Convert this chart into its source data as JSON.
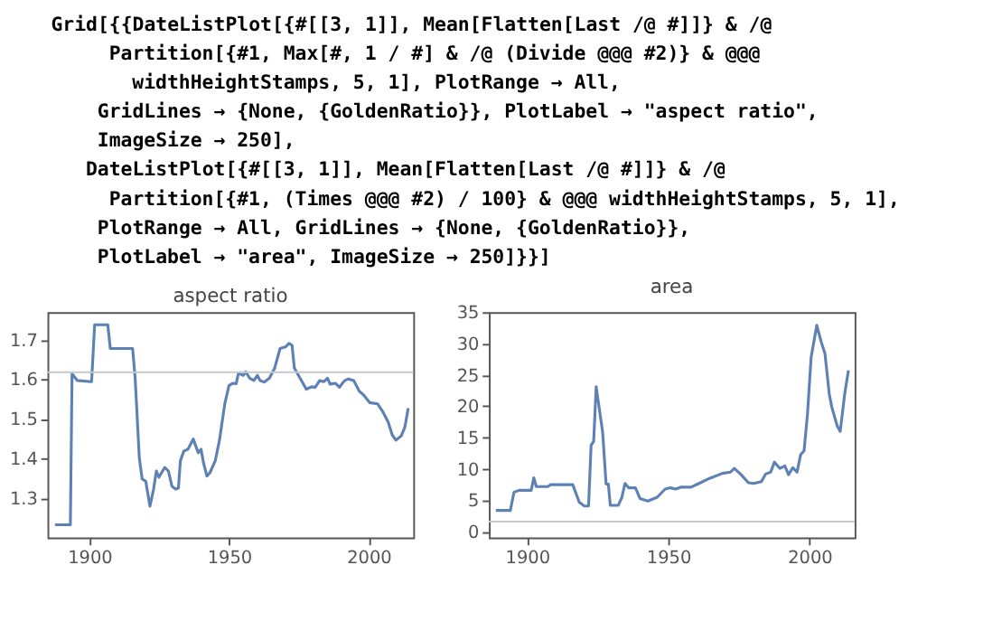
{
  "chart_data": [
    {
      "type": "line",
      "title": "aspect ratio",
      "annotations": [
        "Grid[{{DateListPlot[{#[[3, 1]], Mean[Flatten[Last /@ #]]} & /@",
        "Partition[{#1, Max[#, 1 / #] & /@ (Divide @@@ #2)} & @@@",
        "widthHeightStamps, 5, 1], PlotRange → All,",
        "GridLines → {None, {GoldenRatio}}, PlotLabel → \"aspect ratio\",",
        "ImageSize → 250],",
        "DateListPlot[{#[[3, 1]], Mean[Flatten[Last /@ #]]} & /@",
        "Partition[{#1, (Times @@@ #2) / 100} & @@@ widthHeightStamps, 5, 1],",
        "PlotRange → All, GridLines → {None, {GoldenRatio}},",
        "PlotLabel → \"area\", ImageSize → 250]}}]"
      ],
      "x": [
        1887.7,
        1893.2,
        1893.8,
        1895.7,
        1900.8,
        1901.9,
        1906.6,
        1907.5,
        1915.5,
        1916.4,
        1917.9,
        1918.9,
        1920.2,
        1921.7,
        1923,
        1924,
        1924.9,
        1927,
        1928.3,
        1929.6,
        1930.9,
        1931.9,
        1932.6,
        1933.8,
        1935.3,
        1937.2,
        1939,
        1940,
        1940.9,
        1942.1,
        1943.2,
        1945.1,
        1946.6,
        1948.5,
        1950,
        1951.3,
        1952.6,
        1953.4,
        1955.1,
        1956,
        1957.4,
        1958.9,
        1960.2,
        1961.1,
        1962.6,
        1964.5,
        1966.4,
        1968.3,
        1970.2,
        1971.5,
        1972.6,
        1973.4,
        1974.9,
        1977.7,
        1979.6,
        1980.9,
        1982.5,
        1984,
        1985.3,
        1986.2,
        1988.1,
        1989.6,
        1990.4,
        1991.5,
        1992.8,
        1994.7,
        1996.6,
        1998.5,
        2000.4,
        2003.2,
        2005.1,
        2007,
        2008.5,
        2009.8,
        2011.7,
        2013,
        2014.2
      ],
      "series": [
        {
          "color": "#5e81b5",
          "values": [
            1.232,
            1.232,
            1.614,
            1.597,
            1.594,
            1.738,
            1.738,
            1.678,
            1.678,
            1.603,
            1.4,
            1.348,
            1.342,
            1.279,
            1.322,
            1.368,
            1.352,
            1.377,
            1.368,
            1.329,
            1.322,
            1.325,
            1.394,
            1.418,
            1.423,
            1.449,
            1.414,
            1.423,
            1.388,
            1.355,
            1.364,
            1.394,
            1.446,
            1.538,
            1.584,
            1.59,
            1.589,
            1.616,
            1.61,
            1.619,
            1.603,
            1.597,
            1.61,
            1.597,
            1.593,
            1.603,
            1.629,
            1.678,
            1.682,
            1.691,
            1.686,
            1.629,
            1.61,
            1.575,
            1.581,
            1.58,
            1.597,
            1.594,
            1.603,
            1.588,
            1.59,
            1.58,
            1.588,
            1.597,
            1.601,
            1.597,
            1.571,
            1.558,
            1.541,
            1.538,
            1.518,
            1.492,
            1.459,
            1.446,
            1.457,
            1.479,
            1.527
          ]
        }
      ],
      "xlim": [
        1885,
        2016
      ],
      "xticks": [
        1900,
        1950,
        2000
      ],
      "ylim": [
        1.2,
        1.77
      ],
      "yticks": [
        1.3,
        1.4,
        1.5,
        1.6,
        1.7
      ],
      "ref_lines": [
        {
          "axis": "y",
          "value": 1.618,
          "color": "#c8c8c8"
        }
      ],
      "grid": false,
      "legend": false
    },
    {
      "type": "line",
      "title": "area",
      "x": [
        1889,
        1894.1,
        1895.4,
        1897.2,
        1901.5,
        1902.4,
        1903.3,
        1907.4,
        1908.3,
        1916.2,
        1918.5,
        1920.3,
        1921.8,
        1922.7,
        1923.6,
        1924.5,
        1926.8,
        1928,
        1928.8,
        1929.5,
        1932.3,
        1933.6,
        1934.7,
        1936,
        1938.4,
        1940,
        1942.8,
        1946.1,
        1948.9,
        1950.7,
        1952.6,
        1954.4,
        1958.1,
        1960.9,
        1964.6,
        1969.2,
        1972,
        1973.4,
        1975.6,
        1978.4,
        1980.3,
        1983,
        1984.5,
        1986.3,
        1987.6,
        1989.5,
        1991.3,
        1992.6,
        1994.1,
        1995.6,
        1996.9,
        1998.1,
        1999.3,
        2000.6,
        2002.6,
        2004.2,
        2005.5,
        2007,
        2007.9,
        2009.8,
        2010.9,
        2012.5,
        2013.8
      ],
      "series": [
        {
          "color": "#5e81b5",
          "values": [
            3.4,
            3.4,
            6.3,
            6.6,
            6.6,
            8.6,
            7.2,
            7.2,
            7.5,
            7.5,
            4.7,
            4.1,
            4.1,
            13.8,
            14.4,
            23.1,
            15.8,
            7.6,
            7.6,
            4.2,
            4.2,
            5.5,
            7.7,
            7.0,
            7.0,
            5.3,
            4.9,
            5.5,
            6.8,
            7.0,
            6.8,
            7.1,
            7.1,
            7.7,
            8.5,
            9.3,
            9.5,
            10.1,
            9.2,
            7.8,
            7.7,
            8.0,
            9.2,
            9.5,
            11.1,
            10.1,
            10.5,
            9.1,
            10.2,
            9.5,
            12.3,
            12.9,
            18.7,
            27.8,
            32.9,
            30.2,
            28.4,
            22.0,
            19.9,
            16.9,
            16.0,
            22.0,
            25.7
          ]
        }
      ],
      "xlim": [
        1886.5,
        2016
      ],
      "xticks": [
        1900,
        1950,
        2000
      ],
      "ylim": [
        -0.9,
        35
      ],
      "yticks": [
        0,
        5,
        10,
        15,
        20,
        25,
        30,
        35
      ],
      "ref_lines": [
        {
          "axis": "y",
          "value": 1.618,
          "color": "#c8c8c8"
        }
      ],
      "grid": false,
      "legend": false
    }
  ]
}
